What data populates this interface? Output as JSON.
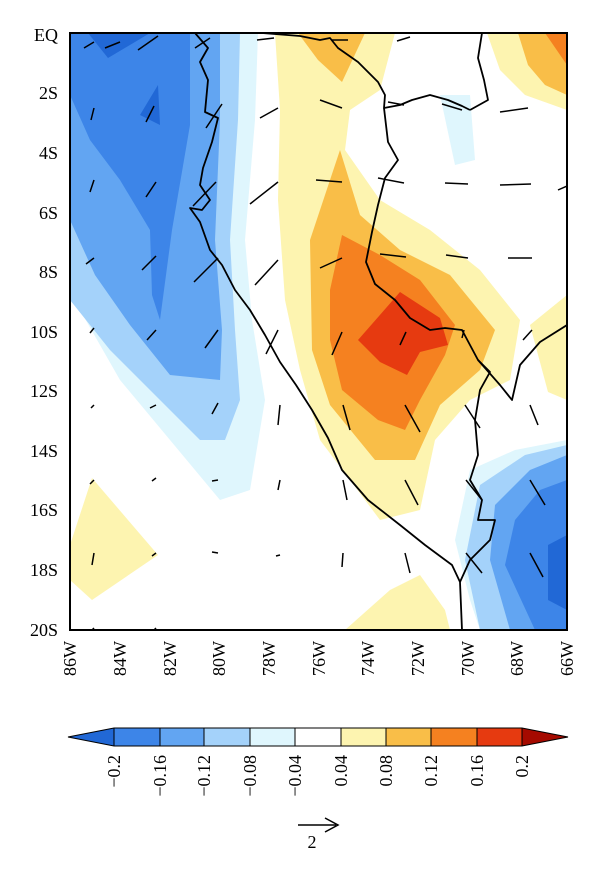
{
  "map": {
    "lat_labels": [
      "EQ",
      "2S",
      "4S",
      "6S",
      "8S",
      "10S",
      "12S",
      "14S",
      "16S",
      "18S",
      "20S"
    ],
    "lon_labels": [
      "86W",
      "84W",
      "82W",
      "80W",
      "78W",
      "76W",
      "74W",
      "72W",
      "70W",
      "68W",
      "66W"
    ],
    "lon_range": [
      -86,
      -66
    ],
    "lat_range": [
      -20,
      0
    ]
  },
  "colorbar": {
    "tick_labels": [
      "−0.2",
      "−0.16",
      "−0.12",
      "−0.08",
      "−0.04",
      "0.04",
      "0.08",
      "0.12",
      "0.16",
      "0.2"
    ],
    "colors": [
      "#2168d6",
      "#3d85e8",
      "#62a5f2",
      "#a4d2fa",
      "#dff6fd",
      "#ffffff",
      "#fdf4b0",
      "#f9be48",
      "#f58120",
      "#e63a10",
      "#c41508",
      "#a50a00"
    ]
  },
  "vector_key": {
    "label": "2"
  }
}
